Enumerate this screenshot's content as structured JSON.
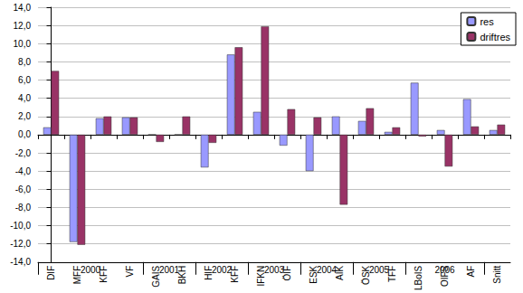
{
  "chart_data": {
    "type": "bar",
    "categories": [
      "DIF",
      "MFF",
      "KFF",
      "VF",
      "GAIS",
      "BKH",
      "HIF",
      "KFF",
      "IFKN",
      "ÖIF",
      "ESK",
      "AIK",
      "ÖSK",
      "TFF",
      "LBoIS",
      "OIFS",
      "AF",
      "Snitt"
    ],
    "groups": [
      {
        "label": "2000",
        "count": 4
      },
      {
        "label": "2001",
        "count": 2
      },
      {
        "label": "2002",
        "count": 2
      },
      {
        "label": "2003",
        "count": 2
      },
      {
        "label": "2004",
        "count": 2
      },
      {
        "label": "2005",
        "count": 2
      },
      {
        "label": "2006",
        "count": 3
      }
    ],
    "series": [
      {
        "name": "res",
        "color": "#9999ff",
        "values": [
          0.8,
          -11.8,
          1.8,
          1.9,
          0.0,
          0.0,
          -3.6,
          8.8,
          2.5,
          -1.2,
          -4.0,
          2.0,
          1.5,
          0.3,
          5.7,
          0.5,
          3.9,
          0.5
        ]
      },
      {
        "name": "driftres",
        "color": "#993366",
        "values": [
          7.0,
          -12.1,
          2.0,
          1.9,
          -0.8,
          2.0,
          -0.9,
          9.6,
          11.9,
          2.8,
          1.9,
          -7.7,
          2.9,
          0.8,
          -0.2,
          -3.5,
          0.9,
          1.1
        ]
      }
    ],
    "ylim": [
      -14,
      14
    ],
    "yticks": [
      {
        "value": -14,
        "label": "-14,0"
      },
      {
        "value": -12,
        "label": "-12,0"
      },
      {
        "value": -10,
        "label": "-10,0"
      },
      {
        "value": -8,
        "label": "-8,0"
      },
      {
        "value": -6,
        "label": "-6,0"
      },
      {
        "value": -4,
        "label": "-4,0"
      },
      {
        "value": -2,
        "label": "-2,0"
      },
      {
        "value": 0,
        "label": "0,0"
      },
      {
        "value": 2,
        "label": "2,0"
      },
      {
        "value": 4,
        "label": "4,0"
      },
      {
        "value": 6,
        "label": "6,0"
      },
      {
        "value": 8,
        "label": "8,0"
      },
      {
        "value": 10,
        "label": "10,0"
      },
      {
        "value": 12,
        "label": "12,0"
      },
      {
        "value": 14,
        "label": "14,0"
      }
    ],
    "grid": true,
    "legend": "top-right"
  }
}
